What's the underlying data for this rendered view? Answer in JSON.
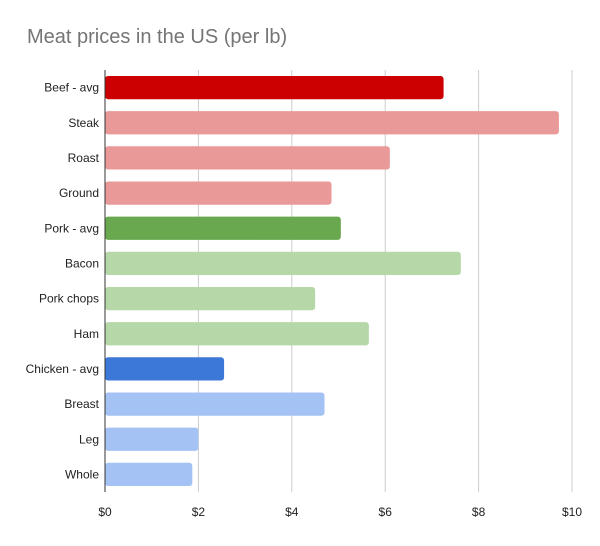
{
  "chart_data": {
    "type": "bar",
    "orientation": "horizontal",
    "title": "Meat prices in the US (per lb)",
    "xlabel": "",
    "ylabel": "",
    "xlim": [
      0,
      10
    ],
    "x_ticks": [
      0,
      2,
      4,
      6,
      8,
      10
    ],
    "x_tick_labels": [
      "$0",
      "$2",
      "$4",
      "$6",
      "$8",
      "$10"
    ],
    "grid": "vertical",
    "legend": "none",
    "categories": [
      "Beef - avg",
      "Steak",
      "Roast",
      "Ground",
      "Pork - avg",
      "Bacon",
      "Pork chops",
      "Ham",
      "Chicken - avg",
      "Breast",
      "Leg",
      "Whole"
    ],
    "values": [
      7.25,
      9.72,
      6.1,
      4.85,
      5.05,
      7.62,
      4.5,
      5.65,
      2.55,
      4.7,
      2.0,
      1.87
    ],
    "colors": [
      "#cc0000",
      "#ea9999",
      "#ea9999",
      "#ea9999",
      "#6aa84f",
      "#b6d7a8",
      "#b6d7a8",
      "#b6d7a8",
      "#3c78d8",
      "#a4c2f4",
      "#a4c2f4",
      "#a4c2f4"
    ]
  }
}
